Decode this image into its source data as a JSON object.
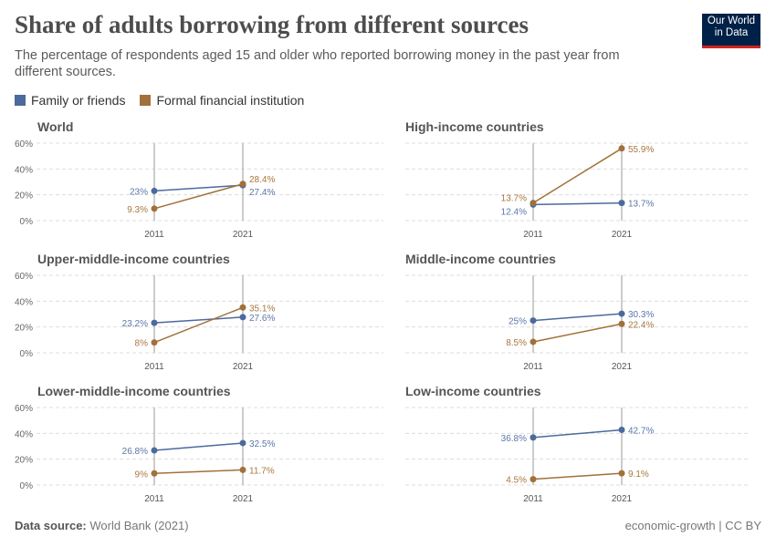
{
  "header": {
    "title": "Share of adults borrowing from different sources",
    "subtitle": "The percentage of respondents aged 15 and older who reported borrowing money in the past year from different sources.",
    "logo_text": "Our World in Data"
  },
  "footer": {
    "source_label": "Data source:",
    "source": "World Bank (2021)",
    "right": "economic-growth | CC BY"
  },
  "colors": {
    "family": "#4c6a9c",
    "formal": "#a2703a",
    "family_label": "#5b77a8",
    "formal_label": "#a8773f"
  },
  "chart_data": {
    "type": "line",
    "layout": "small-multiples slope chart, 3 rows x 2 columns",
    "legend": [
      "Family or friends",
      "Formal financial institution"
    ],
    "legend_position": "top-left",
    "x": [
      "2011",
      "2021"
    ],
    "ylim": [
      0,
      60
    ],
    "yticks": [
      "0%",
      "20%",
      "40%",
      "60%"
    ],
    "grid": true,
    "panels": [
      {
        "title": "World",
        "series": [
          {
            "name": "Family or friends",
            "values": [
              23,
              27.4
            ],
            "labels": [
              "23%",
              "27.4%"
            ]
          },
          {
            "name": "Formal financial institution",
            "values": [
              9.3,
              28.4
            ],
            "labels": [
              "9.3%",
              "28.4%"
            ]
          }
        ]
      },
      {
        "title": "High-income countries",
        "series": [
          {
            "name": "Family or friends",
            "values": [
              12.4,
              13.7
            ],
            "labels": [
              "12.4%",
              "13.7%"
            ]
          },
          {
            "name": "Formal financial institution",
            "values": [
              13.7,
              55.9
            ],
            "labels": [
              "13.7%",
              "55.9%"
            ]
          }
        ]
      },
      {
        "title": "Upper-middle-income countries",
        "series": [
          {
            "name": "Family or friends",
            "values": [
              23.2,
              27.6
            ],
            "labels": [
              "23.2%",
              "27.6%"
            ]
          },
          {
            "name": "Formal financial institution",
            "values": [
              8,
              35.1
            ],
            "labels": [
              "8%",
              "35.1%"
            ]
          }
        ]
      },
      {
        "title": "Middle-income countries",
        "series": [
          {
            "name": "Family or friends",
            "values": [
              25,
              30.3
            ],
            "labels": [
              "25%",
              "30.3%"
            ]
          },
          {
            "name": "Formal financial institution",
            "values": [
              8.5,
              22.4
            ],
            "labels": [
              "8.5%",
              "22.4%"
            ]
          }
        ]
      },
      {
        "title": "Lower-middle-income countries",
        "series": [
          {
            "name": "Family or friends",
            "values": [
              26.8,
              32.5
            ],
            "labels": [
              "26.8%",
              "32.5%"
            ]
          },
          {
            "name": "Formal financial institution",
            "values": [
              9,
              11.7
            ],
            "labels": [
              "9%",
              "11.7%"
            ]
          }
        ]
      },
      {
        "title": "Low-income countries",
        "series": [
          {
            "name": "Family or friends",
            "values": [
              36.8,
              42.7
            ],
            "labels": [
              "36.8%",
              "42.7%"
            ]
          },
          {
            "name": "Formal financial institution",
            "values": [
              4.5,
              9.1
            ],
            "labels": [
              "4.5%",
              "9.1%"
            ]
          }
        ]
      }
    ]
  }
}
